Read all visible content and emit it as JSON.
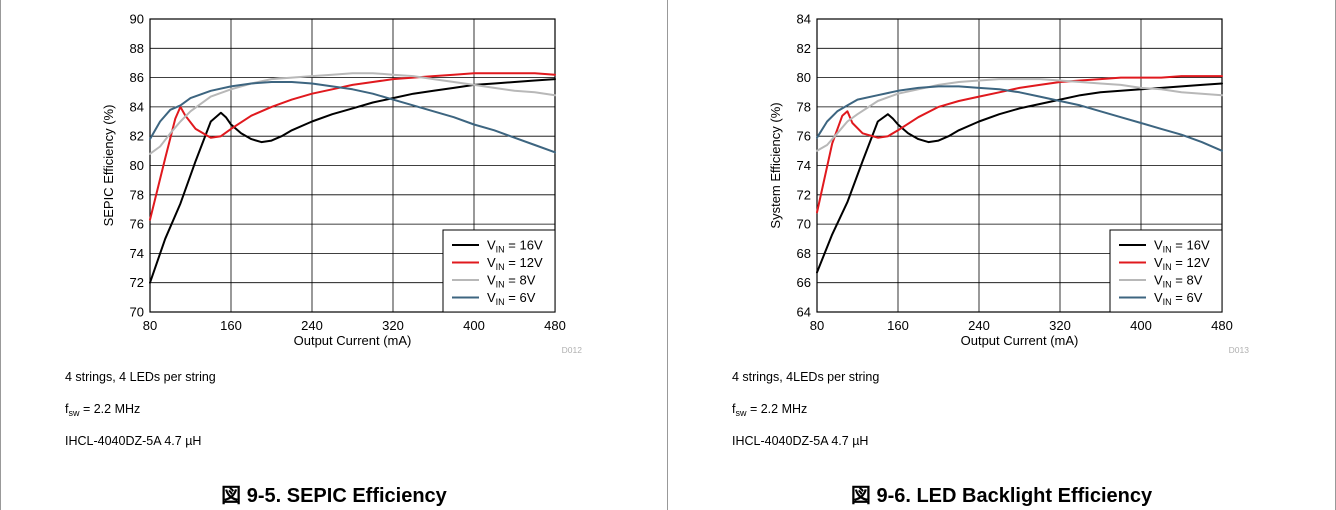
{
  "figures": [
    {
      "notes": [
        "4 strings, 4 LEDs per string",
        "2.2 MHz",
        "IHCL-4040DZ-5A 4.7 µH"
      ],
      "fsw_label": "f",
      "fsw_sub": "sw",
      "fsw_eq": " = ",
      "caption": "図 9-5. SEPIC Efficiency"
    },
    {
      "notes": [
        "4 strings, 4LEDs per string",
        "2.2 MHz",
        "IHCL-4040DZ-5A 4.7 µH"
      ],
      "fsw_label": "f",
      "fsw_sub": "sw",
      "fsw_eq": " = ",
      "caption": "図 9-6. LED Backlight Efficiency"
    }
  ],
  "chart_data": [
    {
      "type": "line",
      "id": "D012",
      "title": "",
      "xlabel": "Output Current (mA)",
      "ylabel": "SEPIC Efficiency (%)",
      "xlim": [
        80,
        480
      ],
      "ylim": [
        70,
        90
      ],
      "xticks": [
        80,
        160,
        240,
        320,
        400,
        480
      ],
      "yticks": [
        70,
        72,
        74,
        76,
        78,
        80,
        82,
        84,
        86,
        88,
        90
      ],
      "grid": true,
      "legend_position": "bottom-right",
      "series": [
        {
          "name": "V_IN = 16V",
          "label_main": "V",
          "label_sub": "IN",
          "label_rest": " = 16V",
          "color": "#000000",
          "x": [
            80,
            95,
            110,
            125,
            140,
            150,
            155,
            160,
            170,
            180,
            190,
            200,
            210,
            220,
            240,
            260,
            280,
            300,
            320,
            340,
            360,
            380,
            400,
            420,
            440,
            460,
            480
          ],
          "y": [
            72,
            75,
            77.4,
            80.3,
            83,
            83.6,
            83.3,
            82.8,
            82.2,
            81.8,
            81.6,
            81.7,
            82,
            82.4,
            83,
            83.5,
            83.9,
            84.3,
            84.6,
            84.9,
            85.1,
            85.3,
            85.5,
            85.6,
            85.7,
            85.8,
            85.9
          ]
        },
        {
          "name": "V_IN = 12V",
          "label_main": "V",
          "label_sub": "IN",
          "label_rest": " = 12V",
          "color": "#e0191e",
          "x": [
            80,
            95,
            105,
            110,
            115,
            125,
            140,
            150,
            160,
            180,
            200,
            220,
            240,
            260,
            280,
            300,
            320,
            340,
            360,
            380,
            400,
            420,
            440,
            460,
            480
          ],
          "y": [
            76.3,
            80.5,
            83.2,
            84,
            83.4,
            82.5,
            81.9,
            82,
            82.5,
            83.4,
            84,
            84.5,
            84.9,
            85.2,
            85.5,
            85.7,
            85.9,
            86,
            86.1,
            86.2,
            86.3,
            86.3,
            86.3,
            86.3,
            86.2
          ]
        },
        {
          "name": "V_IN = 8V",
          "label_main": "V",
          "label_sub": "IN",
          "label_rest": " = 8V",
          "color": "#b8b8b8",
          "x": [
            80,
            90,
            100,
            110,
            120,
            140,
            160,
            180,
            200,
            220,
            240,
            260,
            280,
            300,
            320,
            340,
            360,
            380,
            400,
            420,
            440,
            460,
            480
          ],
          "y": [
            80.8,
            81.3,
            82.2,
            83,
            83.7,
            84.7,
            85.2,
            85.6,
            85.9,
            86,
            86.1,
            86.2,
            86.3,
            86.3,
            86.2,
            86.1,
            85.9,
            85.7,
            85.5,
            85.3,
            85.1,
            85,
            84.8
          ]
        },
        {
          "name": "V_IN = 6V",
          "label_main": "V",
          "label_sub": "IN",
          "label_rest": " = 6V",
          "color": "#3d6580",
          "x": [
            80,
            90,
            100,
            110,
            120,
            140,
            160,
            180,
            200,
            220,
            240,
            260,
            280,
            300,
            320,
            340,
            360,
            380,
            400,
            420,
            440,
            460,
            480
          ],
          "y": [
            81.8,
            83,
            83.8,
            84.1,
            84.6,
            85.1,
            85.4,
            85.6,
            85.7,
            85.7,
            85.6,
            85.4,
            85.2,
            84.9,
            84.5,
            84.1,
            83.7,
            83.3,
            82.8,
            82.4,
            81.9,
            81.4,
            80.9
          ]
        }
      ]
    },
    {
      "type": "line",
      "id": "D013",
      "title": "",
      "xlabel": "Output Current (mA)",
      "ylabel": "System Efficiency (%)",
      "xlim": [
        80,
        480
      ],
      "ylim": [
        64,
        84
      ],
      "xticks": [
        80,
        160,
        240,
        320,
        400,
        480
      ],
      "yticks": [
        64,
        66,
        68,
        70,
        72,
        74,
        76,
        78,
        80,
        82,
        84
      ],
      "grid": true,
      "legend_position": "bottom-right",
      "series": [
        {
          "name": "V_IN = 16V",
          "label_main": "V",
          "label_sub": "IN",
          "label_rest": " = 16V",
          "color": "#000000",
          "x": [
            80,
            95,
            110,
            125,
            140,
            150,
            155,
            160,
            170,
            180,
            190,
            200,
            210,
            220,
            240,
            260,
            280,
            300,
            320,
            340,
            360,
            380,
            400,
            420,
            440,
            460,
            480
          ],
          "y": [
            66.7,
            69.3,
            71.5,
            74.3,
            77,
            77.5,
            77.2,
            76.8,
            76.2,
            75.8,
            75.6,
            75.7,
            76,
            76.4,
            77,
            77.5,
            77.9,
            78.2,
            78.5,
            78.8,
            79,
            79.1,
            79.2,
            79.3,
            79.4,
            79.5,
            79.6
          ]
        },
        {
          "name": "V_IN = 12V",
          "label_main": "V",
          "label_sub": "IN",
          "label_rest": " = 12V",
          "color": "#e0191e",
          "x": [
            80,
            95,
            105,
            110,
            115,
            125,
            140,
            150,
            160,
            180,
            200,
            220,
            240,
            260,
            280,
            300,
            320,
            340,
            360,
            380,
            400,
            420,
            440,
            460,
            480
          ],
          "y": [
            70.8,
            75.5,
            77.4,
            77.7,
            76.9,
            76.2,
            75.9,
            76,
            76.4,
            77.3,
            78,
            78.4,
            78.7,
            79,
            79.3,
            79.5,
            79.7,
            79.8,
            79.9,
            80,
            80,
            80,
            80.1,
            80.1,
            80.1
          ]
        },
        {
          "name": "V_IN = 8V",
          "label_main": "V",
          "label_sub": "IN",
          "label_rest": " = 8V",
          "color": "#b8b8b8",
          "x": [
            80,
            90,
            100,
            110,
            120,
            140,
            160,
            180,
            200,
            220,
            240,
            260,
            280,
            300,
            320,
            340,
            360,
            380,
            400,
            420,
            440,
            460,
            480
          ],
          "y": [
            75,
            75.4,
            76.2,
            77,
            77.5,
            78.4,
            78.9,
            79.2,
            79.5,
            79.7,
            79.8,
            79.9,
            79.9,
            79.9,
            79.8,
            79.7,
            79.6,
            79.5,
            79.3,
            79.2,
            79,
            78.9,
            78.8
          ]
        },
        {
          "name": "V_IN = 6V",
          "label_main": "V",
          "label_sub": "IN",
          "label_rest": " = 6V",
          "color": "#3d6580",
          "x": [
            80,
            90,
            100,
            110,
            120,
            140,
            160,
            180,
            200,
            220,
            240,
            260,
            280,
            300,
            320,
            340,
            360,
            380,
            400,
            420,
            440,
            460,
            480
          ],
          "y": [
            75.9,
            77,
            77.7,
            78.1,
            78.5,
            78.8,
            79.1,
            79.3,
            79.4,
            79.4,
            79.3,
            79.2,
            79,
            78.7,
            78.4,
            78.1,
            77.7,
            77.3,
            76.9,
            76.5,
            76.1,
            75.6,
            75
          ]
        }
      ]
    }
  ]
}
